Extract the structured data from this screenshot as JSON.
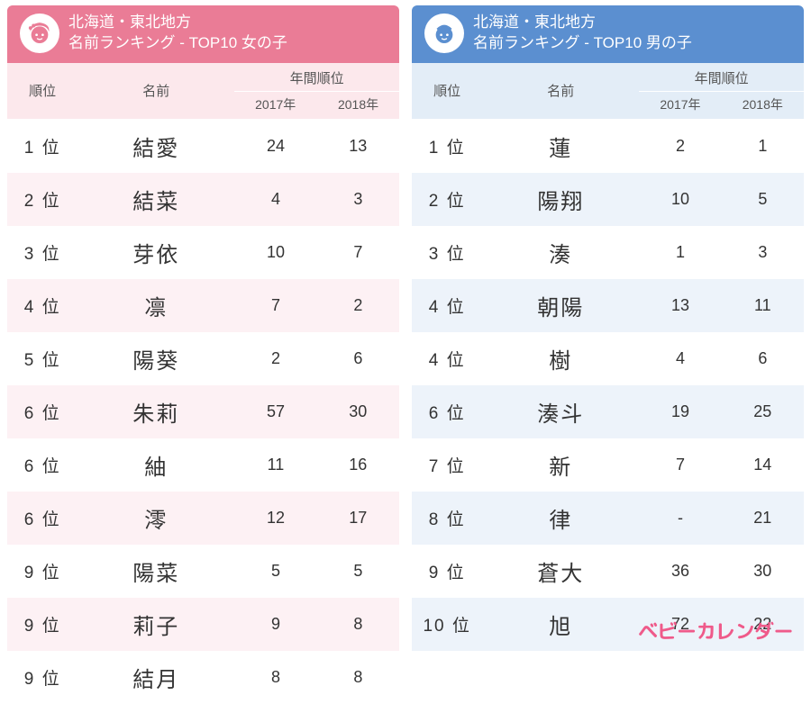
{
  "brand": "ベビーカレンダー",
  "girls": {
    "region": "北海道・東北地方",
    "title": "名前ランキング - TOP10 女の子",
    "header_bg": "#ea7c96",
    "stripe_bg": "#fdf1f4",
    "thead_bg": "#fce8ec",
    "columns": {
      "rank": "順位",
      "name": "名前",
      "year_group": "年間順位",
      "y2017": "2017年",
      "y2018": "2018年"
    },
    "rows": [
      {
        "rank": "1 位",
        "name": "結愛",
        "y2017": "24",
        "y2018": "13"
      },
      {
        "rank": "2 位",
        "name": "結菜",
        "y2017": "4",
        "y2018": "3"
      },
      {
        "rank": "3 位",
        "name": "芽依",
        "y2017": "10",
        "y2018": "7"
      },
      {
        "rank": "4 位",
        "name": "凛",
        "y2017": "7",
        "y2018": "2"
      },
      {
        "rank": "5 位",
        "name": "陽葵",
        "y2017": "2",
        "y2018": "6"
      },
      {
        "rank": "6 位",
        "name": "朱莉",
        "y2017": "57",
        "y2018": "30"
      },
      {
        "rank": "6 位",
        "name": "紬",
        "y2017": "11",
        "y2018": "16"
      },
      {
        "rank": "6 位",
        "name": "澪",
        "y2017": "12",
        "y2018": "17"
      },
      {
        "rank": "9 位",
        "name": "陽菜",
        "y2017": "5",
        "y2018": "5"
      },
      {
        "rank": "9 位",
        "name": "莉子",
        "y2017": "9",
        "y2018": "8"
      },
      {
        "rank": "9 位",
        "name": "結月",
        "y2017": "8",
        "y2018": "8"
      }
    ]
  },
  "boys": {
    "region": "北海道・東北地方",
    "title": "名前ランキング - TOP10 男の子",
    "header_bg": "#5b8fd0",
    "stripe_bg": "#edf3fa",
    "thead_bg": "#e3edf7",
    "columns": {
      "rank": "順位",
      "name": "名前",
      "year_group": "年間順位",
      "y2017": "2017年",
      "y2018": "2018年"
    },
    "rows": [
      {
        "rank": "1 位",
        "name": "蓮",
        "y2017": "2",
        "y2018": "1"
      },
      {
        "rank": "2 位",
        "name": "陽翔",
        "y2017": "10",
        "y2018": "5"
      },
      {
        "rank": "3 位",
        "name": "湊",
        "y2017": "1",
        "y2018": "3"
      },
      {
        "rank": "4 位",
        "name": "朝陽",
        "y2017": "13",
        "y2018": "11"
      },
      {
        "rank": "4 位",
        "name": "樹",
        "y2017": "4",
        "y2018": "6"
      },
      {
        "rank": "6 位",
        "name": "湊斗",
        "y2017": "19",
        "y2018": "25"
      },
      {
        "rank": "7 位",
        "name": "新",
        "y2017": "7",
        "y2018": "14"
      },
      {
        "rank": "8 位",
        "name": "律",
        "y2017": "-",
        "y2018": "21"
      },
      {
        "rank": "9 位",
        "name": "蒼大",
        "y2017": "36",
        "y2018": "30"
      },
      {
        "rank": "10 位",
        "name": "旭",
        "y2017": "72",
        "y2018": "22"
      }
    ]
  }
}
